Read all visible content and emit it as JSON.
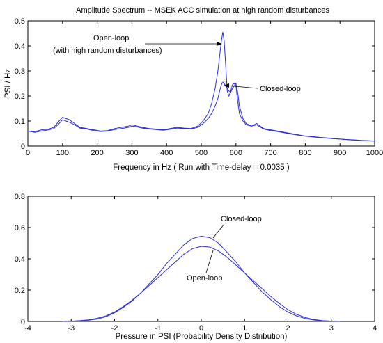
{
  "chart_data": [
    {
      "type": "line",
      "title": "Amplitude Spectrum -- MSEK ACC simulation at high random disturbances",
      "xlabel": "Frequency in Hz  ( Run with Time-delay = 0.0035 )",
      "ylabel": "PSI / Hz",
      "xlim": [
        0,
        1000
      ],
      "ylim": [
        0,
        0.5
      ],
      "xticks": [
        "0",
        "100",
        "200",
        "300",
        "400",
        "500",
        "600",
        "700",
        "800",
        "900",
        "1000"
      ],
      "yticks": [
        "0",
        "0.1",
        "0.2",
        "0.3",
        "0.4",
        "0.5"
      ],
      "grid": false,
      "line_color": "#2a2ad8",
      "series": [
        {
          "x": [
            0,
            20,
            40,
            60,
            75,
            90,
            100,
            110,
            120,
            135,
            150,
            170,
            190,
            210,
            230,
            250,
            270,
            290,
            300,
            310,
            330,
            350,
            370,
            390,
            410,
            430,
            450,
            470,
            490,
            505,
            520,
            530,
            540,
            548,
            553,
            558,
            562,
            566,
            570,
            575,
            580,
            585,
            590,
            595,
            600,
            605,
            610,
            620,
            630,
            645,
            660,
            680,
            700,
            720,
            740,
            760,
            780,
            800,
            820,
            840,
            860,
            880,
            900,
            920,
            940,
            960,
            980,
            1000
          ],
          "y": [
            0.06,
            0.058,
            0.065,
            0.068,
            0.075,
            0.1,
            0.115,
            0.11,
            0.105,
            0.09,
            0.075,
            0.07,
            0.065,
            0.06,
            0.062,
            0.07,
            0.075,
            0.08,
            0.085,
            0.082,
            0.075,
            0.07,
            0.068,
            0.065,
            0.07,
            0.075,
            0.072,
            0.07,
            0.08,
            0.1,
            0.13,
            0.17,
            0.23,
            0.3,
            0.36,
            0.42,
            0.455,
            0.42,
            0.33,
            0.22,
            0.2,
            0.22,
            0.245,
            0.25,
            0.24,
            0.18,
            0.13,
            0.1,
            0.085,
            0.08,
            0.09,
            0.07,
            0.065,
            0.06,
            0.055,
            0.05,
            0.045,
            0.04,
            0.038,
            0.035,
            0.033,
            0.03,
            0.028,
            0.026,
            0.025,
            0.023,
            0.022,
            0.02
          ]
        },
        {
          "x": [
            0,
            20,
            40,
            60,
            75,
            90,
            100,
            110,
            120,
            135,
            150,
            170,
            190,
            210,
            230,
            250,
            270,
            290,
            300,
            310,
            330,
            350,
            370,
            390,
            410,
            430,
            450,
            470,
            490,
            505,
            520,
            530,
            540,
            548,
            553,
            558,
            562,
            566,
            570,
            575,
            580,
            585,
            590,
            595,
            600,
            605,
            610,
            620,
            630,
            645,
            660,
            680,
            700,
            720,
            740,
            760,
            780,
            800,
            820,
            840,
            860,
            880,
            900,
            920,
            940,
            960,
            980,
            1000
          ],
          "y": [
            0.06,
            0.055,
            0.06,
            0.065,
            0.07,
            0.09,
            0.105,
            0.1,
            0.095,
            0.085,
            0.072,
            0.068,
            0.062,
            0.058,
            0.06,
            0.066,
            0.07,
            0.075,
            0.08,
            0.078,
            0.072,
            0.068,
            0.066,
            0.063,
            0.067,
            0.072,
            0.07,
            0.068,
            0.075,
            0.09,
            0.11,
            0.13,
            0.16,
            0.19,
            0.22,
            0.245,
            0.255,
            0.25,
            0.24,
            0.23,
            0.22,
            0.215,
            0.23,
            0.24,
            0.25,
            0.215,
            0.16,
            0.11,
            0.09,
            0.08,
            0.085,
            0.068,
            0.062,
            0.058,
            0.053,
            0.048,
            0.044,
            0.04,
            0.037,
            0.034,
            0.032,
            0.03,
            0.028,
            0.026,
            0.024,
            0.022,
            0.021,
            0.02
          ]
        }
      ],
      "annotations": [
        {
          "text": "Open-loop"
        },
        {
          "text": "(with high random disturbances)"
        },
        {
          "text": "Closed-loop"
        }
      ]
    },
    {
      "type": "line",
      "title": "",
      "xlabel": "Pressure in PSI (Probability Density Distribution)",
      "ylabel": "",
      "xlim": [
        -4,
        4
      ],
      "ylim": [
        0,
        0.8
      ],
      "xticks": [
        "-4",
        "-3",
        "-2",
        "-1",
        "0",
        "1",
        "2",
        "3",
        "4"
      ],
      "yticks": [
        "0",
        "0.2",
        "0.4",
        "0.6",
        "0.8"
      ],
      "grid": false,
      "line_color": "#2a2ad8",
      "series": [
        {
          "x": [
            -3.2,
            -3.0,
            -2.8,
            -2.6,
            -2.4,
            -2.2,
            -2.0,
            -1.8,
            -1.6,
            -1.4,
            -1.2,
            -1.0,
            -0.8,
            -0.6,
            -0.4,
            -0.2,
            0.0,
            0.2,
            0.4,
            0.6,
            0.8,
            1.0,
            1.2,
            1.4,
            1.6,
            1.8,
            2.0,
            2.2,
            2.4,
            2.6,
            2.8,
            3.0,
            3.2
          ],
          "y": [
            0.0,
            0.002,
            0.004,
            0.008,
            0.015,
            0.03,
            0.055,
            0.09,
            0.13,
            0.18,
            0.24,
            0.3,
            0.37,
            0.43,
            0.49,
            0.53,
            0.545,
            0.535,
            0.5,
            0.44,
            0.38,
            0.31,
            0.25,
            0.19,
            0.14,
            0.095,
            0.06,
            0.035,
            0.018,
            0.009,
            0.004,
            0.002,
            0.0
          ]
        },
        {
          "x": [
            -3.2,
            -3.0,
            -2.8,
            -2.6,
            -2.4,
            -2.2,
            -2.0,
            -1.8,
            -1.6,
            -1.4,
            -1.2,
            -1.0,
            -0.8,
            -0.6,
            -0.4,
            -0.2,
            0.0,
            0.2,
            0.4,
            0.6,
            0.8,
            1.0,
            1.2,
            1.4,
            1.6,
            1.8,
            2.0,
            2.2,
            2.4,
            2.6,
            2.8,
            3.0,
            3.2
          ],
          "y": [
            0.0,
            0.002,
            0.005,
            0.01,
            0.02,
            0.035,
            0.06,
            0.095,
            0.135,
            0.18,
            0.23,
            0.28,
            0.33,
            0.38,
            0.43,
            0.465,
            0.48,
            0.475,
            0.45,
            0.41,
            0.36,
            0.31,
            0.26,
            0.21,
            0.16,
            0.115,
            0.075,
            0.045,
            0.025,
            0.012,
            0.005,
            0.002,
            0.0
          ]
        }
      ],
      "annotations": [
        {
          "text": "Closed-loop"
        },
        {
          "text": "Open-loop"
        }
      ]
    }
  ]
}
